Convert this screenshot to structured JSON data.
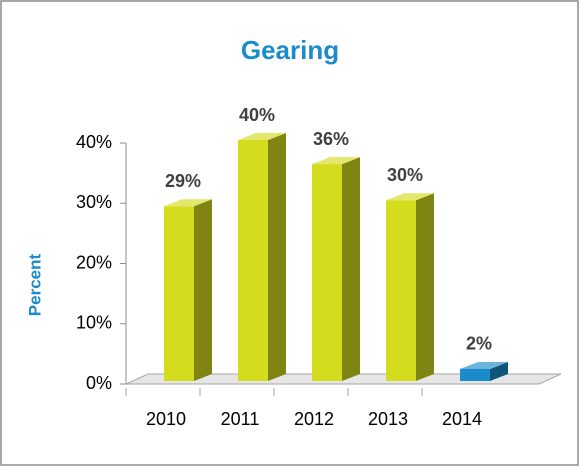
{
  "chart_data": {
    "type": "bar3d",
    "title": "Gearing",
    "y_label": "Percent",
    "categories": [
      "2010",
      "2011",
      "2012",
      "2013",
      "2014"
    ],
    "values": [
      29,
      40,
      36,
      30,
      2
    ],
    "value_labels": [
      "29%",
      "40%",
      "36%",
      "30%",
      "2%"
    ],
    "colors": [
      "#d4dc1e",
      "#d4dc1e",
      "#d4dc1e",
      "#d4dc1e",
      "#1a8ccc"
    ],
    "ylim": [
      0,
      40
    ],
    "yticks": [
      {
        "value": 0,
        "label": "0%"
      },
      {
        "value": 10,
        "label": "10%"
      },
      {
        "value": 20,
        "label": "20%"
      },
      {
        "value": 30,
        "label": "30%"
      },
      {
        "value": 40,
        "label": "40%"
      }
    ]
  }
}
